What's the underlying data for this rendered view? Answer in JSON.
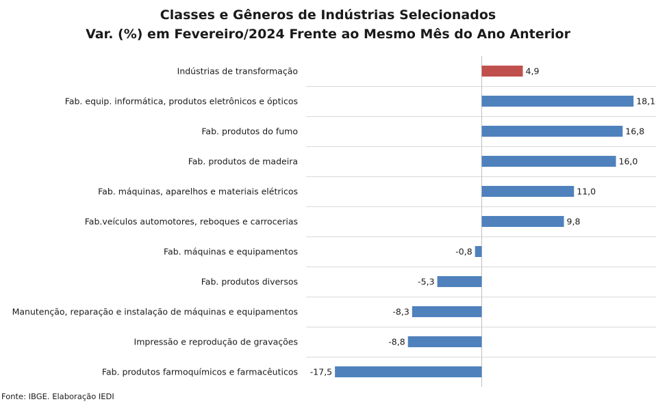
{
  "chart_data": {
    "type": "bar",
    "orientation": "horizontal",
    "title": "Classes e Gêneros de Indústrias Selecionados",
    "subtitle": "Var. (%) em Fevereiro/2024 Frente ao Mesmo Mês do Ano Anterior",
    "categories": [
      "Indústrias de transformação",
      "Fab. equip. informática, produtos eletrônicos e ópticos",
      "Fab. produtos do fumo",
      "Fab. produtos de madeira",
      "Fab. máquinas, aparelhos e materiais elétricos",
      "Fab.veículos automotores, reboques e carrocerias",
      "Fab. máquinas e equipamentos",
      "Fab. produtos diversos",
      "Manutenção, reparação e instalação de máquinas e equipamentos",
      "Impressão e reprodução de gravações",
      "Fab. produtos farmoquímicos e farmacêuticos"
    ],
    "values": [
      4.9,
      18.1,
      16.8,
      16.0,
      11.0,
      9.8,
      -0.8,
      -5.3,
      -8.3,
      -8.8,
      -17.5
    ],
    "value_labels": [
      "4,9",
      "18,1",
      "16,8",
      "16,0",
      "11,0",
      "9,8",
      "-0,8",
      "-5,3",
      "-8,3",
      "-8,8",
      "-17,5"
    ],
    "highlight_color": "#c0504d",
    "bar_color": "#4f81bd",
    "highlight_index": 0,
    "xlim": [
      -20,
      20
    ],
    "grid": "horizontal separators",
    "legend": "none"
  },
  "source": "Fonte: IBGE. Elaboração IEDI"
}
